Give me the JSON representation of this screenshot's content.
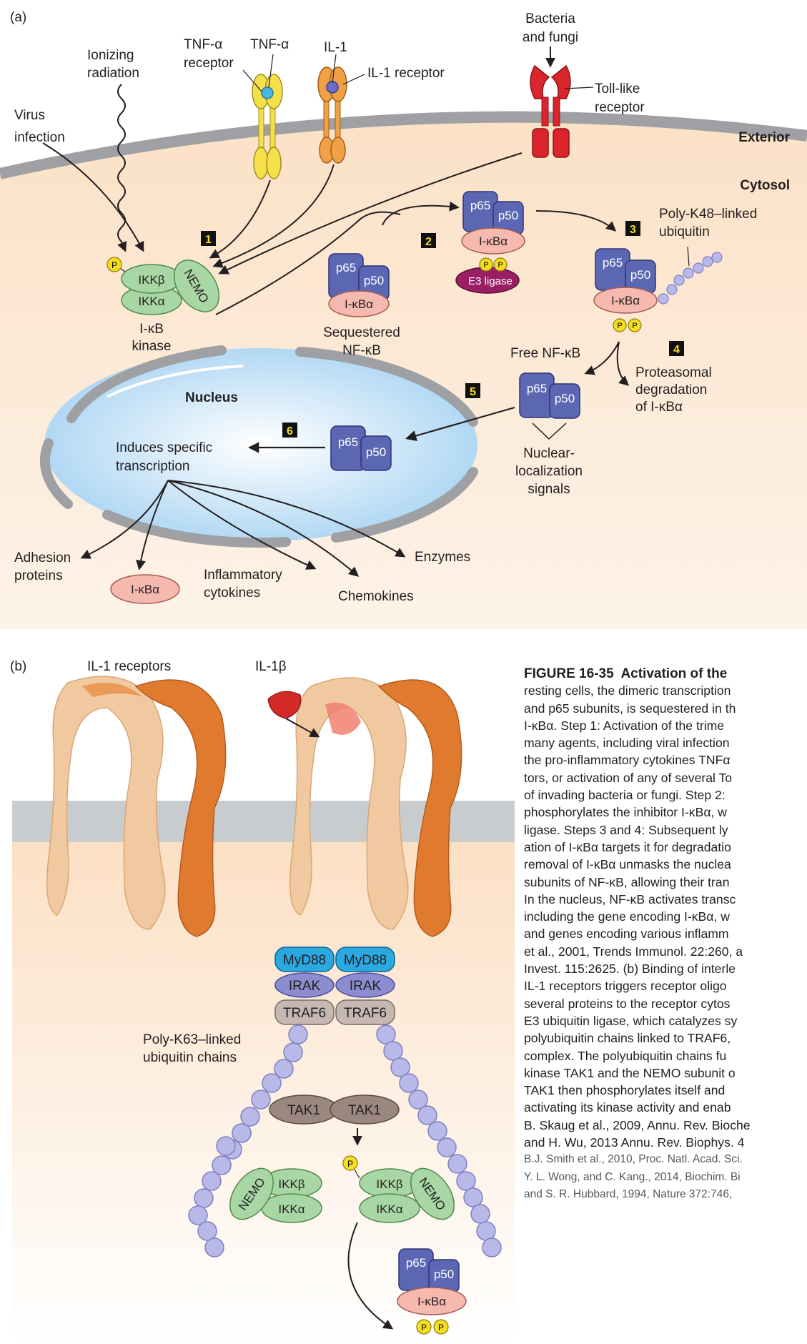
{
  "panel_a": {
    "tag": "(a)",
    "exterior": "Exterior",
    "cytosol": "Cytosol",
    "nucleus": "Nucleus",
    "virus": [
      "Virus",
      "infection"
    ],
    "ionizing": [
      "Ionizing",
      "radiation"
    ],
    "tnf_receptor": [
      "TNF-α",
      "receptor"
    ],
    "tnf": "TNF-α",
    "il1": "IL-1",
    "il1_receptor": "IL-1 receptor",
    "bacteria": [
      "Bacteria",
      "and fungi"
    ],
    "toll": [
      "Toll-like",
      "receptor"
    ],
    "ikk_beta": "IKKβ",
    "ikk_alpha": "IKKα",
    "nemo": "NEMO",
    "ikb_kinase": [
      "I-κB",
      "kinase"
    ],
    "p65": "p65",
    "p50": "p50",
    "ikba": "I-κBα",
    "e3": "E3 ligase",
    "p": "P",
    "sequestered": [
      "Sequestered",
      "NF-κB"
    ],
    "polyk48": [
      "Poly-K48–linked",
      "ubiquitin"
    ],
    "free_nfkb": "Free NF-κB",
    "proteasomal": [
      "Proteasomal",
      "degradation",
      "of I-κBα"
    ],
    "nls": [
      "Nuclear-",
      "localization",
      "signals"
    ],
    "induces": [
      "Induces specific",
      "transcription"
    ],
    "adhesion": [
      "Adhesion",
      "proteins"
    ],
    "inflammatory": [
      "Inflammatory",
      "cytokines"
    ],
    "chemokines": "Chemokines",
    "enzymes": "Enzymes",
    "steps": [
      "1",
      "2",
      "3",
      "4",
      "5",
      "6"
    ]
  },
  "panel_b": {
    "tag": "(b)",
    "il1_receptors": "IL-1 receptors",
    "il1b": "IL-1β",
    "myd88": "MyD88",
    "irak": "IRAK",
    "traf6": "TRAF6",
    "tak1": "TAK1",
    "polyk63": [
      "Poly-K63–linked",
      "ubiquitin chains"
    ],
    "ikk_beta": "IKKβ",
    "ikk_alpha": "IKKα",
    "nemo": "NEMO",
    "p65": "p65",
    "p50": "p50",
    "ikba": "I-κBα",
    "p": "P"
  },
  "caption": {
    "figure": "FIGURE 16-35",
    "title": "Activation of the",
    "lines": [
      "resting cells, the dimeric transcription",
      "and p65 subunits, is sequestered in th",
      "I-κBα. Step 1: Activation of the trime",
      "many agents, including viral infection",
      "the pro-inflammatory cytokines TNFα",
      "tors, or activation of any of several To",
      "of invading bacteria or fungi. Step 2:",
      "phosphorylates the inhibitor I-κBα, w",
      "ligase. Steps 3 and 4: Subsequent ly",
      "ation of I-κBα targets it for degradatio",
      "removal of I-κBα unmasks the nuclea",
      "subunits of NF-κB, allowing their tran",
      "In the nucleus, NF-κB activates transc",
      "including the gene encoding I-κBα, w",
      "and genes encoding various inflamm",
      "et al., 2001, Trends Immunol. 22:260, a",
      "Invest. 115:2625. (b) Binding of interle",
      "IL-1 receptors triggers receptor oligo",
      "several proteins to the receptor cytos",
      "E3 ubiquitin ligase, which catalyzes sy",
      "polyubiquitin chains linked to TRAF6,",
      "complex. The polyubiquitin chains fu",
      "kinase TAK1 and the NEMO subunit o",
      "TAK1 then phosphorylates itself and",
      "activating its kinase activity and enab",
      "B. Skaug et al., 2009, Annu. Rev. Bioche",
      "and H. Wu, 2013 Annu. Rev. Biophys. 4"
    ],
    "small_lines": [
      "B.J. Smith et al., 2010, Proc. Natl. Acad. Sci.",
      "Y. L. Wong, and C. Kang., 2014, Biochim. Bi",
      "and S. R. Hubbard, 1994, Nature 372:746,"
    ]
  },
  "colors": {
    "cytosol": "#fbe3c9",
    "membrane": "#9ea0a3",
    "nucleus": "#a9d4f3",
    "p65": "#5c67b3",
    "ikba": "#f6b9b0",
    "ikk": "#a8d6a4",
    "phospho": "#f5dd1f",
    "e3": "#9a1e63",
    "tnf_receptor": "#f6e04a",
    "il1_receptor": "#f0a045",
    "toll": "#d9252b",
    "ubiquitin": "#b8b9e8",
    "myd88": "#2aa8e0",
    "irak": "#8c8dd0",
    "traf6": "#c5b8b3",
    "tak1": "#9a8780",
    "receptor_light": "#f0c9a0",
    "receptor_dark": "#e07a2e",
    "il1b": "#d42a27"
  }
}
